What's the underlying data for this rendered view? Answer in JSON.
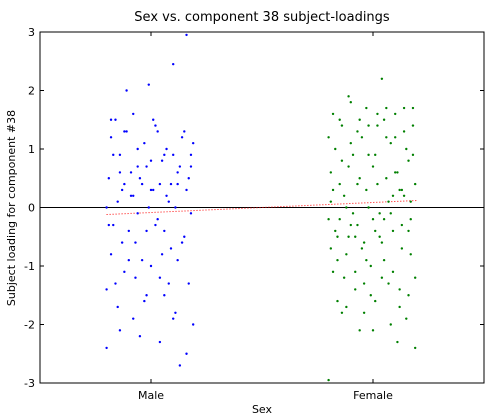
{
  "chart_data": {
    "type": "scatter",
    "title": "Sex vs. component 38 subject-loadings",
    "xlabel": "Sex",
    "ylabel": "Subject loading for component #38",
    "categories": [
      "Male",
      "Female"
    ],
    "ylim": [
      -3,
      3
    ],
    "yticks": [
      "-3",
      "-2",
      "-1",
      "0",
      "1",
      "2",
      "3"
    ],
    "grid": false,
    "colors": {
      "male": "#0000ff",
      "female": "#008000",
      "zero_line": "#000000",
      "fit_line": "#ff0000"
    },
    "jitter_half_width": 0.2,
    "series": [
      {
        "category": "Male",
        "points": [
          [
            0.8,
            -1.4
          ],
          [
            0.81,
            0.5
          ],
          [
            0.82,
            1.2
          ],
          [
            0.83,
            -0.3
          ],
          [
            0.84,
            1.5
          ],
          [
            0.85,
            -1.7
          ],
          [
            0.86,
            0.9
          ],
          [
            0.87,
            -0.6
          ],
          [
            0.88,
            1.3
          ],
          [
            0.89,
            2.0
          ],
          [
            0.9,
            -0.9
          ],
          [
            0.91,
            0.2
          ],
          [
            0.92,
            1.6
          ],
          [
            0.93,
            -1.2
          ],
          [
            0.94,
            0.7
          ],
          [
            0.95,
            -2.2
          ],
          [
            0.96,
            0.4
          ],
          [
            0.97,
            1.1
          ],
          [
            0.98,
            -0.4
          ],
          [
            0.99,
            2.1
          ],
          [
            1.0,
            -1.0
          ],
          [
            1.01,
            0.3
          ],
          [
            1.02,
            1.4
          ],
          [
            1.03,
            -0.2
          ],
          [
            1.04,
            -2.3
          ],
          [
            1.05,
            0.8
          ],
          [
            1.06,
            -1.5
          ],
          [
            1.07,
            1.0
          ],
          [
            1.08,
            0.1
          ],
          [
            1.09,
            -0.7
          ],
          [
            1.1,
            2.45
          ],
          [
            1.11,
            -1.8
          ],
          [
            1.12,
            0.6
          ],
          [
            1.13,
            -2.7
          ],
          [
            1.14,
            1.2
          ],
          [
            1.15,
            -0.5
          ],
          [
            1.16,
            2.95
          ],
          [
            1.17,
            -1.3
          ],
          [
            1.18,
            0.9
          ],
          [
            1.19,
            -2.0
          ],
          [
            0.82,
            -0.8
          ],
          [
            0.85,
            0.1
          ],
          [
            0.88,
            -1.1
          ],
          [
            0.91,
            0.6
          ],
          [
            0.94,
            -0.1
          ],
          [
            0.97,
            -1.6
          ],
          [
            1.0,
            0.8
          ],
          [
            1.03,
            1.3
          ],
          [
            1.06,
            -0.4
          ],
          [
            1.09,
            0.4
          ],
          [
            1.12,
            -0.9
          ],
          [
            1.15,
            1.3
          ],
          [
            1.18,
            -0.1
          ],
          [
            0.8,
            -2.4
          ],
          [
            0.86,
            -2.1
          ],
          [
            0.92,
            -1.9
          ],
          [
            0.98,
            -1.5
          ],
          [
            1.04,
            -1.2
          ],
          [
            1.1,
            -1.9
          ],
          [
            1.16,
            -2.5
          ],
          [
            0.83,
            0.9
          ],
          [
            0.89,
            1.3
          ],
          [
            0.95,
            0.5
          ],
          [
            1.01,
            1.5
          ],
          [
            1.07,
            0.2
          ],
          [
            1.13,
            0.7
          ],
          [
            1.19,
            1.1
          ],
          [
            0.81,
            -0.3
          ],
          [
            0.87,
            0.3
          ],
          [
            0.93,
            -0.6
          ],
          [
            0.99,
            0.0
          ],
          [
            1.05,
            -0.8
          ],
          [
            1.11,
            0.0
          ],
          [
            1.17,
            0.5
          ],
          [
            0.84,
            -1.3
          ],
          [
            0.9,
            -0.4
          ],
          [
            0.96,
            -0.9
          ],
          [
            1.02,
            -0.3
          ],
          [
            1.08,
            -1.3
          ],
          [
            1.14,
            -0.6
          ],
          [
            0.8,
            0.0
          ],
          [
            0.86,
            0.6
          ],
          [
            0.92,
            0.2
          ],
          [
            0.98,
            0.7
          ],
          [
            1.04,
            0.4
          ],
          [
            1.1,
            0.9
          ],
          [
            1.16,
            0.3
          ],
          [
            0.82,
            1.5
          ],
          [
            0.88,
            0.4
          ],
          [
            0.94,
            1.0
          ],
          [
            1.0,
            0.3
          ],
          [
            1.06,
            0.9
          ],
          [
            1.12,
            0.4
          ],
          [
            1.18,
            0.7
          ]
        ]
      },
      {
        "category": "Female",
        "points": [
          [
            1.8,
            -0.2
          ],
          [
            1.81,
            0.6
          ],
          [
            1.82,
            -1.1
          ],
          [
            1.83,
            1.0
          ],
          [
            1.84,
            -0.5
          ],
          [
            1.85,
            1.5
          ],
          [
            1.86,
            -1.8
          ],
          [
            1.87,
            0.2
          ],
          [
            1.88,
            -0.8
          ],
          [
            1.89,
            1.9
          ],
          [
            1.9,
            -0.3
          ],
          [
            1.91,
            0.9
          ],
          [
            1.92,
            -1.4
          ],
          [
            1.93,
            0.4
          ],
          [
            1.94,
            -2.1
          ],
          [
            1.95,
            1.2
          ],
          [
            1.96,
            -0.6
          ],
          [
            1.97,
            1.7
          ],
          [
            1.98,
            0.0
          ],
          [
            1.99,
            -1.0
          ],
          [
            2.0,
            0.7
          ],
          [
            2.01,
            -1.6
          ],
          [
            2.02,
            1.4
          ],
          [
            2.03,
            -0.1
          ],
          [
            2.04,
            2.2
          ],
          [
            2.05,
            -0.9
          ],
          [
            2.06,
            0.5
          ],
          [
            2.07,
            -1.3
          ],
          [
            2.08,
            1.1
          ],
          [
            2.09,
            -0.4
          ],
          [
            2.1,
            1.6
          ],
          [
            2.11,
            -2.3
          ],
          [
            2.12,
            0.3
          ],
          [
            2.13,
            -0.7
          ],
          [
            2.14,
            1.3
          ],
          [
            2.15,
            -1.9
          ],
          [
            2.16,
            0.8
          ],
          [
            2.17,
            -0.2
          ],
          [
            2.18,
            1.7
          ],
          [
            2.19,
            -1.2
          ],
          [
            1.81,
            0.1
          ],
          [
            1.83,
            -0.4
          ],
          [
            1.85,
            0.4
          ],
          [
            1.87,
            -1.2
          ],
          [
            1.89,
            0.7
          ],
          [
            1.91,
            -0.1
          ],
          [
            1.93,
            1.3
          ],
          [
            1.95,
            -0.7
          ],
          [
            1.97,
            0.3
          ],
          [
            1.99,
            -1.5
          ],
          [
            2.01,
            0.9
          ],
          [
            2.03,
            -0.5
          ],
          [
            2.05,
            1.5
          ],
          [
            2.07,
            0.1
          ],
          [
            2.09,
            -1.1
          ],
          [
            2.11,
            0.6
          ],
          [
            2.13,
            -0.3
          ],
          [
            2.15,
            1.0
          ],
          [
            2.17,
            -0.8
          ],
          [
            2.19,
            0.4
          ],
          [
            1.8,
            1.2
          ],
          [
            1.82,
            0.3
          ],
          [
            1.84,
            -0.9
          ],
          [
            1.86,
            0.8
          ],
          [
            1.88,
            0.0
          ],
          [
            1.9,
            1.1
          ],
          [
            1.92,
            -0.5
          ],
          [
            1.94,
            0.5
          ],
          [
            1.96,
            -1.3
          ],
          [
            1.98,
            0.9
          ],
          [
            2.0,
            -0.2
          ],
          [
            2.02,
            0.4
          ],
          [
            2.04,
            -0.6
          ],
          [
            2.06,
            1.2
          ],
          [
            2.08,
            -0.1
          ],
          [
            2.1,
            0.6
          ],
          [
            2.12,
            -1.4
          ],
          [
            2.14,
            0.2
          ],
          [
            2.16,
            -0.4
          ],
          [
            2.18,
            0.9
          ],
          [
            1.8,
            -2.95
          ],
          [
            1.84,
            -1.6
          ],
          [
            1.88,
            -1.7
          ],
          [
            1.92,
            -1.1
          ],
          [
            1.96,
            -1.8
          ],
          [
            2.0,
            -2.1
          ],
          [
            2.04,
            -1.2
          ],
          [
            2.08,
            -2.0
          ],
          [
            2.12,
            -1.7
          ],
          [
            2.16,
            -1.5
          ],
          [
            2.19,
            -2.4
          ],
          [
            1.82,
            1.6
          ],
          [
            1.86,
            1.4
          ],
          [
            1.9,
            1.8
          ],
          [
            1.94,
            1.5
          ],
          [
            1.98,
            1.4
          ],
          [
            2.02,
            1.6
          ],
          [
            2.06,
            1.7
          ],
          [
            2.1,
            1.2
          ],
          [
            2.14,
            1.7
          ],
          [
            2.18,
            1.4
          ],
          [
            1.81,
            -0.7
          ],
          [
            1.85,
            -0.2
          ],
          [
            1.89,
            -0.5
          ],
          [
            1.93,
            -0.3
          ],
          [
            1.97,
            -0.9
          ],
          [
            2.01,
            -0.4
          ],
          [
            2.05,
            -0.2
          ],
          [
            2.09,
            0.2
          ],
          [
            2.13,
            0.3
          ],
          [
            2.17,
            0.1
          ]
        ]
      }
    ],
    "reference_line": {
      "y": 0
    },
    "fit_line": {
      "x": [
        0.8,
        2.2
      ],
      "y": [
        -0.12,
        0.12
      ]
    }
  }
}
